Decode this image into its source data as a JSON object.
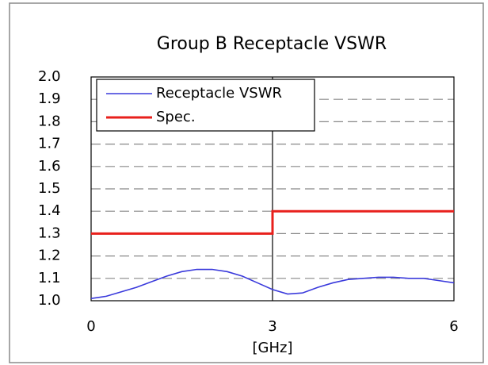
{
  "chart_data": {
    "type": "line",
    "title": "Group B  Receptacle VSWR",
    "xlabel": "[GHz]",
    "xlim": [
      0,
      6
    ],
    "xticks": [
      0,
      3,
      6
    ],
    "ylim": [
      1.0,
      2.0
    ],
    "yticks": [
      {
        "value": 1.0,
        "label": "1.0"
      },
      {
        "value": 1.1,
        "label": "1.1"
      },
      {
        "value": 1.2,
        "label": "1.2"
      },
      {
        "value": 1.3,
        "label": "1.3"
      },
      {
        "value": 1.4,
        "label": "1.4"
      },
      {
        "value": 1.5,
        "label": "1.5"
      },
      {
        "value": 1.6,
        "label": "1.6"
      },
      {
        "value": 1.7,
        "label": "1.7"
      },
      {
        "value": 1.8,
        "label": "1.8"
      },
      {
        "value": 1.9,
        "label": "1.9"
      },
      {
        "value": 2.0,
        "label": "2.0"
      }
    ],
    "grid": true,
    "legend": "upper left",
    "series": [
      {
        "name": "Receptacle VSWR",
        "color": "#3a3adc",
        "x": [
          0,
          0.25,
          0.5,
          0.75,
          1.0,
          1.25,
          1.5,
          1.75,
          2.0,
          2.25,
          2.5,
          2.75,
          3.0,
          3.25,
          3.5,
          3.75,
          4.0,
          4.25,
          4.5,
          4.75,
          5.0,
          5.25,
          5.5,
          5.75,
          6.0
        ],
        "values": [
          1.01,
          1.02,
          1.04,
          1.06,
          1.085,
          1.11,
          1.13,
          1.14,
          1.14,
          1.13,
          1.11,
          1.08,
          1.05,
          1.03,
          1.035,
          1.06,
          1.08,
          1.095,
          1.1,
          1.105,
          1.105,
          1.1,
          1.1,
          1.09,
          1.08
        ]
      },
      {
        "name": "Spec.",
        "color": "#e8201c",
        "x": [
          0,
          3,
          3,
          6
        ],
        "values": [
          1.3,
          1.3,
          1.4,
          1.4
        ]
      }
    ]
  }
}
